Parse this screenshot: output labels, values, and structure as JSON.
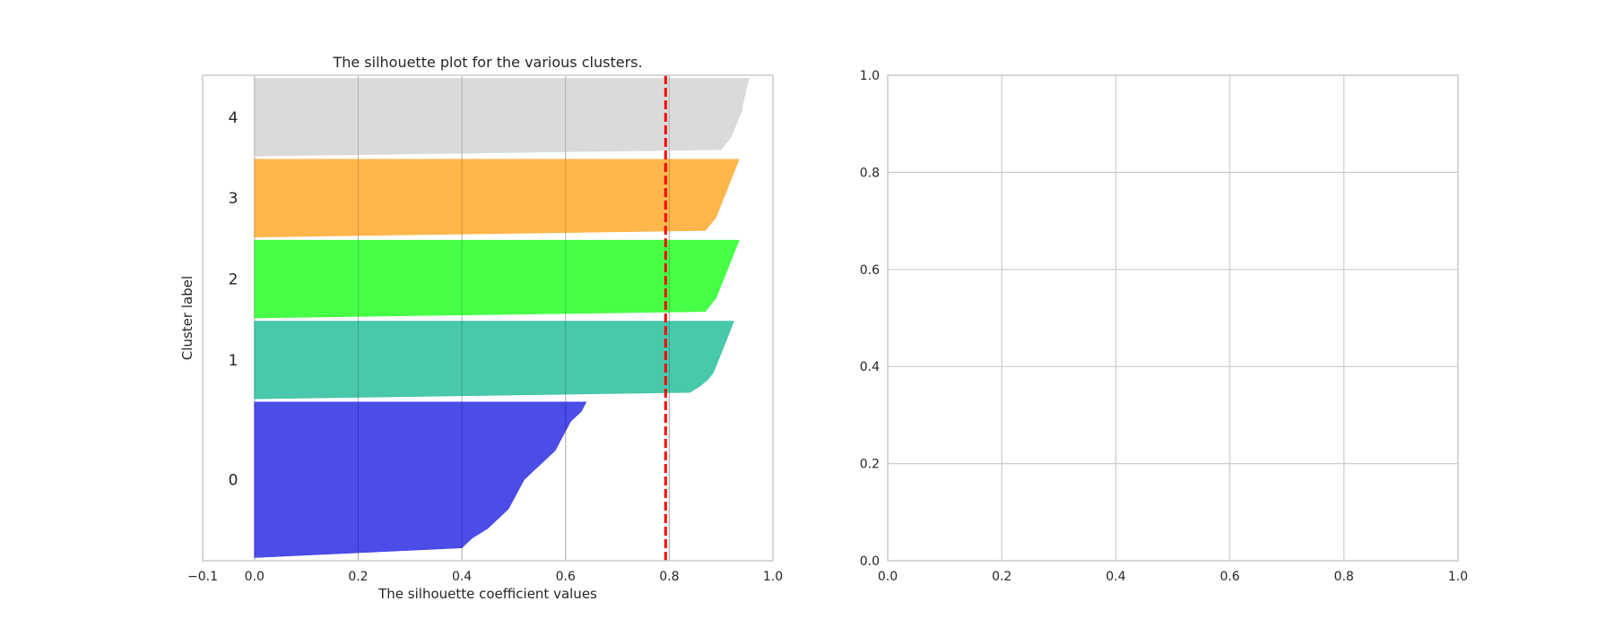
{
  "chart_data": [
    {
      "type": "area",
      "title": "The silhouette plot for the various clusters.",
      "xlabel": "The silhouette coefficient values",
      "ylabel": "Cluster label",
      "xlim": [
        -0.1,
        1.0
      ],
      "xticks": [
        -0.1,
        0.0,
        0.2,
        0.4,
        0.6,
        0.8,
        1.0
      ],
      "xtick_labels": [
        "−0.1",
        "0.0",
        "0.2",
        "0.4",
        "0.6",
        "0.8",
        "1.0"
      ],
      "yticks": [],
      "grid": true,
      "average_silhouette_score": 0.793,
      "average_line_color": "#ff0000",
      "clusters": [
        {
          "label": "0",
          "color": "#1a1ae0",
          "size": 150,
          "silhouette_profile": [
            0.64,
            0.63,
            0.61,
            0.6,
            0.59,
            0.58,
            0.56,
            0.54,
            0.52,
            0.51,
            0.5,
            0.49,
            0.47,
            0.45,
            0.42,
            0.4,
            0.0
          ]
        },
        {
          "label": "1",
          "color": "#16b894",
          "size": 75,
          "silhouette_profile": [
            0.925,
            0.92,
            0.915,
            0.91,
            0.905,
            0.9,
            0.895,
            0.89,
            0.885,
            0.875,
            0.86,
            0.84,
            0.0
          ]
        },
        {
          "label": "2",
          "color": "#14ff14",
          "size": 75,
          "silhouette_profile": [
            0.935,
            0.93,
            0.925,
            0.92,
            0.915,
            0.91,
            0.905,
            0.9,
            0.895,
            0.89,
            0.88,
            0.87,
            0.0
          ]
        },
        {
          "label": "3",
          "color": "#ffa31a",
          "size": 75,
          "silhouette_profile": [
            0.935,
            0.93,
            0.925,
            0.92,
            0.915,
            0.91,
            0.905,
            0.9,
            0.895,
            0.89,
            0.88,
            0.87,
            0.0
          ]
        },
        {
          "label": "4",
          "color": "#cfcfcf",
          "size": 75,
          "silhouette_profile": [
            0.955,
            0.95,
            0.948,
            0.945,
            0.942,
            0.94,
            0.935,
            0.93,
            0.925,
            0.92,
            0.91,
            0.9,
            0.0
          ]
        }
      ]
    },
    {
      "type": "scatter",
      "title": "",
      "xlabel": "",
      "ylabel": "",
      "xlim": [
        0.0,
        1.0
      ],
      "ylim": [
        0.0,
        1.0
      ],
      "xticks": [
        0.0,
        0.2,
        0.4,
        0.6,
        0.8,
        1.0
      ],
      "xtick_labels": [
        "0.0",
        "0.2",
        "0.4",
        "0.6",
        "0.8",
        "1.0"
      ],
      "yticks": [
        0.0,
        0.2,
        0.4,
        0.6,
        0.8,
        1.0
      ],
      "ytick_labels": [
        "0.0",
        "0.2",
        "0.4",
        "0.6",
        "0.8",
        "1.0"
      ],
      "grid": true,
      "series": []
    }
  ]
}
